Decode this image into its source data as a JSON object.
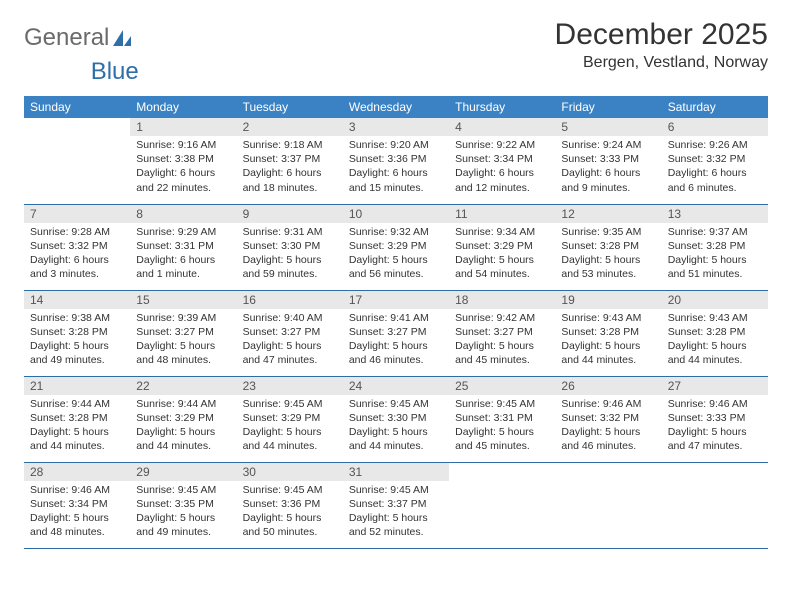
{
  "logo": {
    "text1": "General",
    "text2": "Blue"
  },
  "title": "December 2025",
  "location": "Bergen, Vestland, Norway",
  "colors": {
    "header_bg": "#3b82c4",
    "header_text": "#ffffff",
    "daynum_bg": "#e8e8e8",
    "border": "#2e6da4",
    "logo_gray": "#6a6a6a",
    "logo_blue": "#2f6fa8",
    "text": "#333333",
    "page_bg": "#ffffff"
  },
  "days_of_week": [
    "Sunday",
    "Monday",
    "Tuesday",
    "Wednesday",
    "Thursday",
    "Friday",
    "Saturday"
  ],
  "weeks": [
    [
      null,
      {
        "n": "1",
        "sr": "Sunrise: 9:16 AM",
        "ss": "Sunset: 3:38 PM",
        "dl": "Daylight: 6 hours and 22 minutes."
      },
      {
        "n": "2",
        "sr": "Sunrise: 9:18 AM",
        "ss": "Sunset: 3:37 PM",
        "dl": "Daylight: 6 hours and 18 minutes."
      },
      {
        "n": "3",
        "sr": "Sunrise: 9:20 AM",
        "ss": "Sunset: 3:36 PM",
        "dl": "Daylight: 6 hours and 15 minutes."
      },
      {
        "n": "4",
        "sr": "Sunrise: 9:22 AM",
        "ss": "Sunset: 3:34 PM",
        "dl": "Daylight: 6 hours and 12 minutes."
      },
      {
        "n": "5",
        "sr": "Sunrise: 9:24 AM",
        "ss": "Sunset: 3:33 PM",
        "dl": "Daylight: 6 hours and 9 minutes."
      },
      {
        "n": "6",
        "sr": "Sunrise: 9:26 AM",
        "ss": "Sunset: 3:32 PM",
        "dl": "Daylight: 6 hours and 6 minutes."
      }
    ],
    [
      {
        "n": "7",
        "sr": "Sunrise: 9:28 AM",
        "ss": "Sunset: 3:32 PM",
        "dl": "Daylight: 6 hours and 3 minutes."
      },
      {
        "n": "8",
        "sr": "Sunrise: 9:29 AM",
        "ss": "Sunset: 3:31 PM",
        "dl": "Daylight: 6 hours and 1 minute."
      },
      {
        "n": "9",
        "sr": "Sunrise: 9:31 AM",
        "ss": "Sunset: 3:30 PM",
        "dl": "Daylight: 5 hours and 59 minutes."
      },
      {
        "n": "10",
        "sr": "Sunrise: 9:32 AM",
        "ss": "Sunset: 3:29 PM",
        "dl": "Daylight: 5 hours and 56 minutes."
      },
      {
        "n": "11",
        "sr": "Sunrise: 9:34 AM",
        "ss": "Sunset: 3:29 PM",
        "dl": "Daylight: 5 hours and 54 minutes."
      },
      {
        "n": "12",
        "sr": "Sunrise: 9:35 AM",
        "ss": "Sunset: 3:28 PM",
        "dl": "Daylight: 5 hours and 53 minutes."
      },
      {
        "n": "13",
        "sr": "Sunrise: 9:37 AM",
        "ss": "Sunset: 3:28 PM",
        "dl": "Daylight: 5 hours and 51 minutes."
      }
    ],
    [
      {
        "n": "14",
        "sr": "Sunrise: 9:38 AM",
        "ss": "Sunset: 3:28 PM",
        "dl": "Daylight: 5 hours and 49 minutes."
      },
      {
        "n": "15",
        "sr": "Sunrise: 9:39 AM",
        "ss": "Sunset: 3:27 PM",
        "dl": "Daylight: 5 hours and 48 minutes."
      },
      {
        "n": "16",
        "sr": "Sunrise: 9:40 AM",
        "ss": "Sunset: 3:27 PM",
        "dl": "Daylight: 5 hours and 47 minutes."
      },
      {
        "n": "17",
        "sr": "Sunrise: 9:41 AM",
        "ss": "Sunset: 3:27 PM",
        "dl": "Daylight: 5 hours and 46 minutes."
      },
      {
        "n": "18",
        "sr": "Sunrise: 9:42 AM",
        "ss": "Sunset: 3:27 PM",
        "dl": "Daylight: 5 hours and 45 minutes."
      },
      {
        "n": "19",
        "sr": "Sunrise: 9:43 AM",
        "ss": "Sunset: 3:28 PM",
        "dl": "Daylight: 5 hours and 44 minutes."
      },
      {
        "n": "20",
        "sr": "Sunrise: 9:43 AM",
        "ss": "Sunset: 3:28 PM",
        "dl": "Daylight: 5 hours and 44 minutes."
      }
    ],
    [
      {
        "n": "21",
        "sr": "Sunrise: 9:44 AM",
        "ss": "Sunset: 3:28 PM",
        "dl": "Daylight: 5 hours and 44 minutes."
      },
      {
        "n": "22",
        "sr": "Sunrise: 9:44 AM",
        "ss": "Sunset: 3:29 PM",
        "dl": "Daylight: 5 hours and 44 minutes."
      },
      {
        "n": "23",
        "sr": "Sunrise: 9:45 AM",
        "ss": "Sunset: 3:29 PM",
        "dl": "Daylight: 5 hours and 44 minutes."
      },
      {
        "n": "24",
        "sr": "Sunrise: 9:45 AM",
        "ss": "Sunset: 3:30 PM",
        "dl": "Daylight: 5 hours and 44 minutes."
      },
      {
        "n": "25",
        "sr": "Sunrise: 9:45 AM",
        "ss": "Sunset: 3:31 PM",
        "dl": "Daylight: 5 hours and 45 minutes."
      },
      {
        "n": "26",
        "sr": "Sunrise: 9:46 AM",
        "ss": "Sunset: 3:32 PM",
        "dl": "Daylight: 5 hours and 46 minutes."
      },
      {
        "n": "27",
        "sr": "Sunrise: 9:46 AM",
        "ss": "Sunset: 3:33 PM",
        "dl": "Daylight: 5 hours and 47 minutes."
      }
    ],
    [
      {
        "n": "28",
        "sr": "Sunrise: 9:46 AM",
        "ss": "Sunset: 3:34 PM",
        "dl": "Daylight: 5 hours and 48 minutes."
      },
      {
        "n": "29",
        "sr": "Sunrise: 9:45 AM",
        "ss": "Sunset: 3:35 PM",
        "dl": "Daylight: 5 hours and 49 minutes."
      },
      {
        "n": "30",
        "sr": "Sunrise: 9:45 AM",
        "ss": "Sunset: 3:36 PM",
        "dl": "Daylight: 5 hours and 50 minutes."
      },
      {
        "n": "31",
        "sr": "Sunrise: 9:45 AM",
        "ss": "Sunset: 3:37 PM",
        "dl": "Daylight: 5 hours and 52 minutes."
      },
      null,
      null,
      null
    ]
  ]
}
